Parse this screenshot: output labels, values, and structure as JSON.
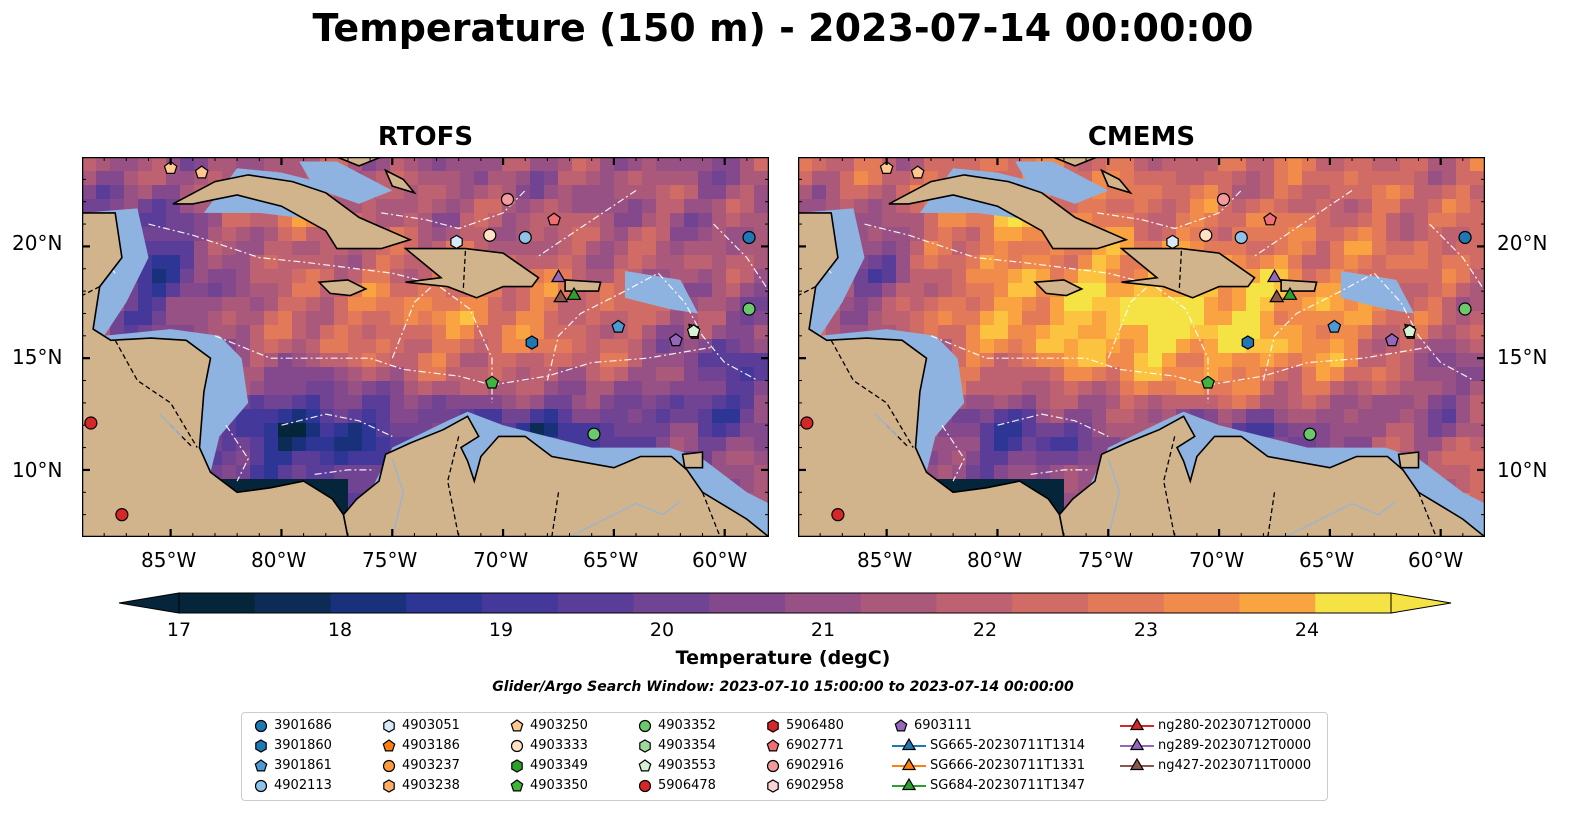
{
  "title": "Temperature (150 m) - 2023-07-14 00:00:00",
  "panels": [
    {
      "title": "RTOFS",
      "key": "rtofs"
    },
    {
      "title": "CMEMS",
      "key": "cmems"
    }
  ],
  "lon_ticks": [
    "85°W",
    "80°W",
    "75°W",
    "70°W",
    "65°W",
    "60°W"
  ],
  "lat_ticks": [
    "20°N",
    "15°N",
    "10°N"
  ],
  "colorbar": {
    "label": "Temperature (degC)",
    "ticks": [
      "17",
      "18",
      "19",
      "20",
      "21",
      "22",
      "23",
      "24"
    ],
    "min": 16.5,
    "max": 24.5,
    "levels": 16,
    "colors": [
      "#05263a",
      "#0c2c55",
      "#19317b",
      "#2d3595",
      "#44389a",
      "#5a3d98",
      "#704393",
      "#84498c",
      "#985184",
      "#ab597b",
      "#be6271",
      "#d06c65",
      "#e27958",
      "#f18b4b",
      "#f9a441",
      "#fbc33f",
      "#f5e245"
    ]
  },
  "search_window": "Glider/Argo Search Window: 2023-07-10 15:00:00 to 2023-07-14 00:00:00",
  "legend": [
    {
      "label": "3901686",
      "marker": "circle",
      "color": "#1f77b4"
    },
    {
      "label": "3901860",
      "marker": "hexagon",
      "color": "#1f77b4"
    },
    {
      "label": "3901861",
      "marker": "pentagon",
      "color": "#4a9ad6"
    },
    {
      "label": "4902113",
      "marker": "circle",
      "color": "#8fc3ea"
    },
    {
      "label": "4903051",
      "marker": "hexagon",
      "color": "#d5e9f8"
    },
    {
      "label": "4903186",
      "marker": "pentagon",
      "color": "#ff7f0e"
    },
    {
      "label": "4903237",
      "marker": "circle",
      "color": "#ff9a3c"
    },
    {
      "label": "4903238",
      "marker": "hexagon",
      "color": "#ffae63"
    },
    {
      "label": "4903250",
      "marker": "pentagon",
      "color": "#ffc891"
    },
    {
      "label": "4903333",
      "marker": "circle",
      "color": "#ffe2c4"
    },
    {
      "label": "4903349",
      "marker": "hexagon",
      "color": "#2ca02c"
    },
    {
      "label": "4903350",
      "marker": "pentagon",
      "color": "#3fb43f"
    },
    {
      "label": "4903352",
      "marker": "circle",
      "color": "#6cc86c"
    },
    {
      "label": "4903354",
      "marker": "hexagon",
      "color": "#9ddb9d"
    },
    {
      "label": "4903553",
      "marker": "pentagon",
      "color": "#d4f2d4"
    },
    {
      "label": "5906478",
      "marker": "circle",
      "color": "#d62728"
    },
    {
      "label": "5906480",
      "marker": "hexagon",
      "color": "#d62728"
    },
    {
      "label": "6902771",
      "marker": "pentagon",
      "color": "#ef6f75"
    },
    {
      "label": "6902916",
      "marker": "circle",
      "color": "#f39a9e"
    },
    {
      "label": "6902958",
      "marker": "hexagon",
      "color": "#fbd3d4"
    },
    {
      "label": "6903111",
      "marker": "pentagon",
      "color": "#9467bd"
    },
    {
      "label": "SG665-20230711T1314",
      "marker": "triangle-line",
      "color": "#1f77b4"
    },
    {
      "label": "SG666-20230711T1331",
      "marker": "triangle-line",
      "color": "#ff7f0e"
    },
    {
      "label": "SG684-20230711T1347",
      "marker": "triangle-line",
      "color": "#2ca02c"
    },
    {
      "label": "ng280-20230712T0000",
      "marker": "triangle-line",
      "color": "#d62728"
    },
    {
      "label": "ng289-20230712T0000",
      "marker": "triangle-line",
      "color": "#9467bd"
    },
    {
      "label": "ng427-20230711T0000",
      "marker": "triangle-line",
      "color": "#8c564b"
    }
  ],
  "observations": [
    {
      "id": "3901686",
      "lon": -58.9,
      "lat": 20.4
    },
    {
      "id": "3901860",
      "lon": -68.7,
      "lat": 15.7
    },
    {
      "id": "3901861",
      "lon": -64.8,
      "lat": 16.4
    },
    {
      "id": "4902113",
      "lon": -69.0,
      "lat": 20.4
    },
    {
      "id": "4903051",
      "lon": -72.1,
      "lat": 20.2
    },
    {
      "id": "4903250",
      "lon": -85.0,
      "lat": 23.5
    },
    {
      "id": "4903250",
      "lon": -83.6,
      "lat": 23.3
    },
    {
      "id": "4903333",
      "lon": -70.6,
      "lat": 20.5
    },
    {
      "id": "4903350",
      "lon": -70.5,
      "lat": 13.9
    },
    {
      "id": "4903352",
      "lon": -58.9,
      "lat": 17.2
    },
    {
      "id": "4903352",
      "lon": -65.9,
      "lat": 11.6
    },
    {
      "id": "4903553",
      "lon": -61.4,
      "lat": 16.2
    },
    {
      "id": "5906478",
      "lon": -88.6,
      "lat": 12.1
    },
    {
      "id": "5906478",
      "lon": -87.2,
      "lat": 8.0
    },
    {
      "id": "6902771",
      "lon": -67.7,
      "lat": 21.2
    },
    {
      "id": "6902916",
      "lon": -69.8,
      "lat": 22.1
    },
    {
      "id": "6903111",
      "lon": -62.2,
      "lat": 15.8
    },
    {
      "id": "ng289-20230712T0000",
      "lon": -67.5,
      "lat": 18.6
    },
    {
      "id": "SG684-20230711T1347",
      "lon": -66.8,
      "lat": 17.8
    },
    {
      "id": "ng427-20230711T0000",
      "lon": -67.4,
      "lat": 17.7
    }
  ],
  "colors": {
    "land": "#d2b48c",
    "shelf": "#8fb3e0",
    "coast": "#000000",
    "eez": "#ffffff"
  }
}
